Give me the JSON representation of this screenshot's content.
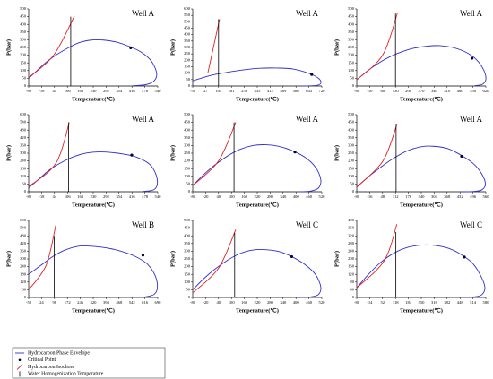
{
  "chart_data": [
    {
      "type": "line",
      "title": "Well A",
      "xlabel": "Temperature(℃)",
      "ylabel": "P(bar)",
      "xlim": [
        -80,
        540
      ],
      "xticks": [
        -80,
        -18,
        44,
        106,
        168,
        230,
        292,
        354,
        416,
        478,
        540
      ],
      "ylim": [
        0,
        500
      ],
      "yticks": [
        0,
        50,
        100,
        150,
        200,
        250,
        300,
        350,
        400,
        450,
        500
      ],
      "series": [
        {
          "name": "Hydrocarbon Phase Envelope",
          "color": "#3030cc",
          "style": "line",
          "x": [
            -80,
            -40,
            0,
            50,
            100,
            160,
            220,
            280,
            340,
            400,
            460,
            510,
            535,
            520,
            480,
            420
          ],
          "y": [
            50,
            100,
            150,
            200,
            240,
            280,
            298,
            298,
            285,
            258,
            220,
            160,
            80,
            30,
            8,
            2
          ]
        },
        {
          "name": "Critical Point",
          "color": "#000033",
          "style": "marker",
          "x": [
            410
          ],
          "y": [
            248
          ]
        },
        {
          "name": "Hydrocarbon Isochore",
          "color": "#e02020",
          "style": "line",
          "x": [
            -80,
            40,
            140
          ],
          "y": [
            55,
            200,
            455
          ]
        },
        {
          "name": "Water Homogenization Temperature",
          "color": "#000000",
          "style": "vline",
          "x": [
            122,
            122
          ],
          "y": [
            0,
            450
          ]
        }
      ]
    },
    {
      "type": "line",
      "title": "Well A",
      "xlabel": "Temperature(℃)",
      "ylabel": "P(bar)",
      "xlim": [
        -50,
        720
      ],
      "xticks": [
        -50,
        27,
        104,
        181,
        258,
        335,
        412,
        489,
        566,
        643,
        720
      ],
      "ylim": [
        0,
        600
      ],
      "yticks": [
        0,
        50,
        100,
        150,
        200,
        250,
        300,
        350,
        400,
        450,
        500,
        550,
        600
      ],
      "series": [
        {
          "name": "Hydrocarbon Phase Envelope",
          "color": "#3030cc",
          "style": "line",
          "x": [
            -50,
            50,
            150,
            250,
            350,
            450,
            550,
            650,
            700,
            715,
            690,
            600
          ],
          "y": [
            40,
            80,
            105,
            125,
            138,
            140,
            132,
            95,
            60,
            25,
            5,
            0
          ]
        },
        {
          "name": "Critical Point",
          "color": "#000033",
          "style": "marker",
          "x": [
            660
          ],
          "y": [
            90
          ]
        },
        {
          "name": "Hydrocarbon Isochore",
          "color": "#e02020",
          "style": "line",
          "x": [
            40,
            110
          ],
          "y": [
            100,
            520
          ]
        },
        {
          "name": "Water Homogenization Temperature",
          "color": "#000000",
          "style": "vline",
          "x": [
            104,
            104
          ],
          "y": [
            0,
            520
          ]
        }
      ]
    },
    {
      "type": "line",
      "title": "Well A",
      "xlabel": "Temperature(℃)",
      "ylabel": "P(bar)",
      "xlim": [
        -80,
        620
      ],
      "xticks": [
        -80,
        -10,
        60,
        130,
        200,
        270,
        340,
        410,
        480,
        550,
        620
      ],
      "ylim": [
        0,
        500
      ],
      "yticks": [
        0,
        50,
        100,
        150,
        200,
        250,
        300,
        350,
        400,
        450,
        500
      ],
      "series": [
        {
          "name": "Hydrocarbon Phase Envelope",
          "color": "#3030cc",
          "style": "line",
          "x": [
            -80,
            -20,
            40,
            100,
            160,
            230,
            300,
            370,
            440,
            510,
            570,
            610,
            620,
            600,
            560
          ],
          "y": [
            40,
            100,
            150,
            190,
            220,
            245,
            258,
            262,
            250,
            220,
            170,
            100,
            40,
            10,
            2
          ]
        },
        {
          "name": "Critical Point",
          "color": "#000033",
          "style": "marker",
          "x": [
            545
          ],
          "y": [
            180
          ]
        },
        {
          "name": "Hydrocarbon Isochore",
          "color": "#e02020",
          "style": "line",
          "x": [
            -80,
            60,
            140
          ],
          "y": [
            40,
            200,
            470
          ]
        },
        {
          "name": "Water Homogenization Temperature",
          "color": "#000000",
          "style": "vline",
          "x": [
            130,
            130
          ],
          "y": [
            0,
            470
          ]
        }
      ]
    },
    {
      "type": "line",
      "title": "Well A",
      "xlabel": "Temperature(℃)",
      "ylabel": "P(bar)",
      "xlim": [
        -80,
        540
      ],
      "xticks": [
        -80,
        -18,
        44,
        106,
        168,
        230,
        292,
        354,
        416,
        478,
        540
      ],
      "ylim": [
        0,
        600
      ],
      "yticks": [
        0,
        60,
        120,
        180,
        240,
        300,
        360,
        420,
        480,
        540,
        600
      ],
      "series": [
        {
          "name": "Hydrocarbon Phase Envelope",
          "color": "#3030cc",
          "style": "line",
          "x": [
            -80,
            -30,
            20,
            80,
            140,
            200,
            260,
            320,
            380,
            440,
            500,
            530,
            538,
            520,
            470
          ],
          "y": [
            30,
            100,
            170,
            230,
            275,
            302,
            310,
            305,
            292,
            268,
            215,
            140,
            60,
            15,
            2
          ]
        },
        {
          "name": "Critical Point",
          "color": "#000033",
          "style": "marker",
          "x": [
            415
          ],
          "y": [
            285
          ]
        },
        {
          "name": "Hydrocarbon Isochore",
          "color": "#e02020",
          "style": "line",
          "x": [
            -80,
            50,
            115
          ],
          "y": [
            40,
            220,
            540
          ]
        },
        {
          "name": "Water Homogenization Temperature",
          "color": "#000000",
          "style": "vline",
          "x": [
            112,
            112
          ],
          "y": [
            0,
            540
          ]
        }
      ]
    },
    {
      "type": "line",
      "title": "Well A",
      "xlabel": "Temperature(℃)",
      "ylabel": "P(bar)",
      "xlim": [
        -80,
        520
      ],
      "xticks": [
        -80,
        -20,
        40,
        100,
        160,
        220,
        280,
        340,
        400,
        460,
        520
      ],
      "ylim": [
        0,
        500
      ],
      "yticks": [
        0,
        50,
        100,
        150,
        200,
        250,
        300,
        350,
        400,
        450,
        500
      ],
      "series": [
        {
          "name": "Hydrocarbon Phase Envelope",
          "color": "#3030cc",
          "style": "line",
          "x": [
            -80,
            -30,
            20,
            80,
            140,
            200,
            260,
            320,
            380,
            440,
            490,
            515,
            505,
            470,
            420
          ],
          "y": [
            40,
            110,
            170,
            230,
            275,
            300,
            305,
            295,
            268,
            225,
            160,
            80,
            25,
            5,
            0
          ]
        },
        {
          "name": "Critical Point",
          "color": "#000033",
          "style": "marker",
          "x": [
            395
          ],
          "y": [
            258
          ]
        },
        {
          "name": "Hydrocarbon Isochore",
          "color": "#e02020",
          "style": "line",
          "x": [
            -80,
            40,
            120
          ],
          "y": [
            40,
            200,
            450
          ]
        },
        {
          "name": "Water Homogenization Temperature",
          "color": "#000000",
          "style": "vline",
          "x": [
            112,
            112
          ],
          "y": [
            0,
            450
          ]
        }
      ]
    },
    {
      "type": "line",
      "title": "Well A",
      "xlabel": "Temperature(℃)",
      "ylabel": "P(bar)",
      "xlim": [
        -80,
        560
      ],
      "xticks": [
        -80,
        -16,
        48,
        112,
        176,
        240,
        304,
        368,
        432,
        496,
        560
      ],
      "ylim": [
        0,
        500
      ],
      "yticks": [
        0,
        50,
        100,
        150,
        200,
        250,
        300,
        350,
        400,
        450,
        500
      ],
      "series": [
        {
          "name": "Hydrocarbon Phase Envelope",
          "color": "#3030cc",
          "style": "line",
          "x": [
            -80,
            -20,
            40,
            100,
            170,
            240,
            300,
            370,
            440,
            500,
            540,
            558,
            540,
            500,
            440
          ],
          "y": [
            30,
            100,
            160,
            215,
            265,
            292,
            295,
            280,
            235,
            180,
            115,
            50,
            12,
            2,
            0
          ]
        },
        {
          "name": "Critical Point",
          "color": "#000033",
          "style": "marker",
          "x": [
            440
          ],
          "y": [
            230
          ]
        },
        {
          "name": "Hydrocarbon Isochore",
          "color": "#e02020",
          "style": "line",
          "x": [
            -80,
            50,
            120
          ],
          "y": [
            30,
            200,
            440
          ]
        },
        {
          "name": "Water Homogenization Temperature",
          "color": "#000000",
          "style": "vline",
          "x": [
            115,
            115
          ],
          "y": [
            0,
            440
          ]
        }
      ]
    },
    {
      "type": "line",
      "title": "Well B",
      "xlabel": "Temperature(℃)",
      "ylabel": "P(bar)",
      "xlim": [
        -50,
        690
      ],
      "xticks": [
        -50,
        24,
        98,
        172,
        246,
        320,
        394,
        468,
        542,
        616,
        690
      ],
      "ylim": [
        0,
        600
      ],
      "yticks": [
        0,
        60,
        120,
        180,
        240,
        300,
        360,
        420,
        480,
        540,
        600
      ],
      "series": [
        {
          "name": "Hydrocarbon Phase Envelope",
          "color": "#3030cc",
          "style": "line",
          "x": [
            -50,
            20,
            90,
            160,
            240,
            320,
            400,
            480,
            560,
            630,
            675,
            688,
            670,
            620,
            560
          ],
          "y": [
            180,
            250,
            320,
            370,
            400,
            398,
            385,
            360,
            320,
            260,
            170,
            80,
            25,
            5,
            0
          ]
        },
        {
          "name": "Critical Point",
          "color": "#000033",
          "style": "marker",
          "x": [
            605
          ],
          "y": [
            330
          ]
        },
        {
          "name": "Hydrocarbon Isochore",
          "color": "#e02020",
          "style": "line",
          "x": [
            -50,
            50,
            105
          ],
          "y": [
            60,
            250,
            560
          ]
        },
        {
          "name": "Water Homogenization Temperature",
          "color": "#000000",
          "style": "vline",
          "x": [
            96,
            96
          ],
          "y": [
            0,
            480
          ]
        }
      ]
    },
    {
      "type": "line",
      "title": "Well C",
      "xlabel": "Temperature(℃)",
      "ylabel": "P(bar)",
      "xlim": [
        -80,
        520
      ],
      "xticks": [
        -80,
        -20,
        40,
        100,
        160,
        220,
        280,
        340,
        400,
        460,
        520
      ],
      "ylim": [
        0,
        500
      ],
      "yticks": [
        0,
        50,
        100,
        150,
        200,
        250,
        300,
        350,
        400,
        450,
        500
      ],
      "series": [
        {
          "name": "Hydrocarbon Phase Envelope",
          "color": "#3030cc",
          "style": "line",
          "x": [
            -80,
            -30,
            20,
            80,
            140,
            200,
            260,
            320,
            380,
            440,
            490,
            515,
            505,
            470,
            420
          ],
          "y": [
            50,
            120,
            180,
            240,
            285,
            308,
            310,
            298,
            265,
            215,
            150,
            70,
            20,
            4,
            0
          ]
        },
        {
          "name": "Critical Point",
          "color": "#000033",
          "style": "marker",
          "x": [
            380
          ],
          "y": [
            265
          ]
        },
        {
          "name": "Hydrocarbon Isochore",
          "color": "#e02020",
          "style": "line",
          "x": [
            -80,
            40,
            120
          ],
          "y": [
            30,
            190,
            440
          ]
        },
        {
          "name": "Water Homogenization Temperature",
          "color": "#000000",
          "style": "vline",
          "x": [
            115,
            115
          ],
          "y": [
            0,
            420
          ]
        }
      ]
    },
    {
      "type": "line",
      "title": "Well C",
      "xlabel": "Temperature(℃)",
      "ylabel": "P(bar)",
      "xlim": [
        -80,
        580
      ],
      "xticks": [
        -80,
        -14,
        52,
        118,
        184,
        250,
        316,
        382,
        448,
        514,
        580
      ],
      "ylim": [
        0,
        400
      ],
      "yticks": [
        0,
        40,
        80,
        120,
        160,
        200,
        240,
        280,
        320,
        360,
        400
      ],
      "series": [
        {
          "name": "Hydrocarbon Phase Envelope",
          "color": "#3030cc",
          "style": "line",
          "x": [
            -80,
            -20,
            40,
            110,
            180,
            250,
            320,
            390,
            450,
            510,
            550,
            575,
            560,
            520,
            460
          ],
          "y": [
            50,
            120,
            180,
            230,
            260,
            272,
            270,
            255,
            225,
            180,
            120,
            55,
            15,
            3,
            0
          ]
        },
        {
          "name": "Critical Point",
          "color": "#000033",
          "style": "marker",
          "x": [
            470
          ],
          "y": [
            210
          ]
        },
        {
          "name": "Hydrocarbon Isochore",
          "color": "#e02020",
          "style": "line",
          "x": [
            -80,
            60,
            125
          ],
          "y": [
            50,
            190,
            380
          ]
        },
        {
          "name": "Water Homogenization Temperature",
          "color": "#000000",
          "style": "vline",
          "x": [
            120,
            120
          ],
          "y": [
            0,
            340
          ]
        }
      ]
    }
  ]
}
